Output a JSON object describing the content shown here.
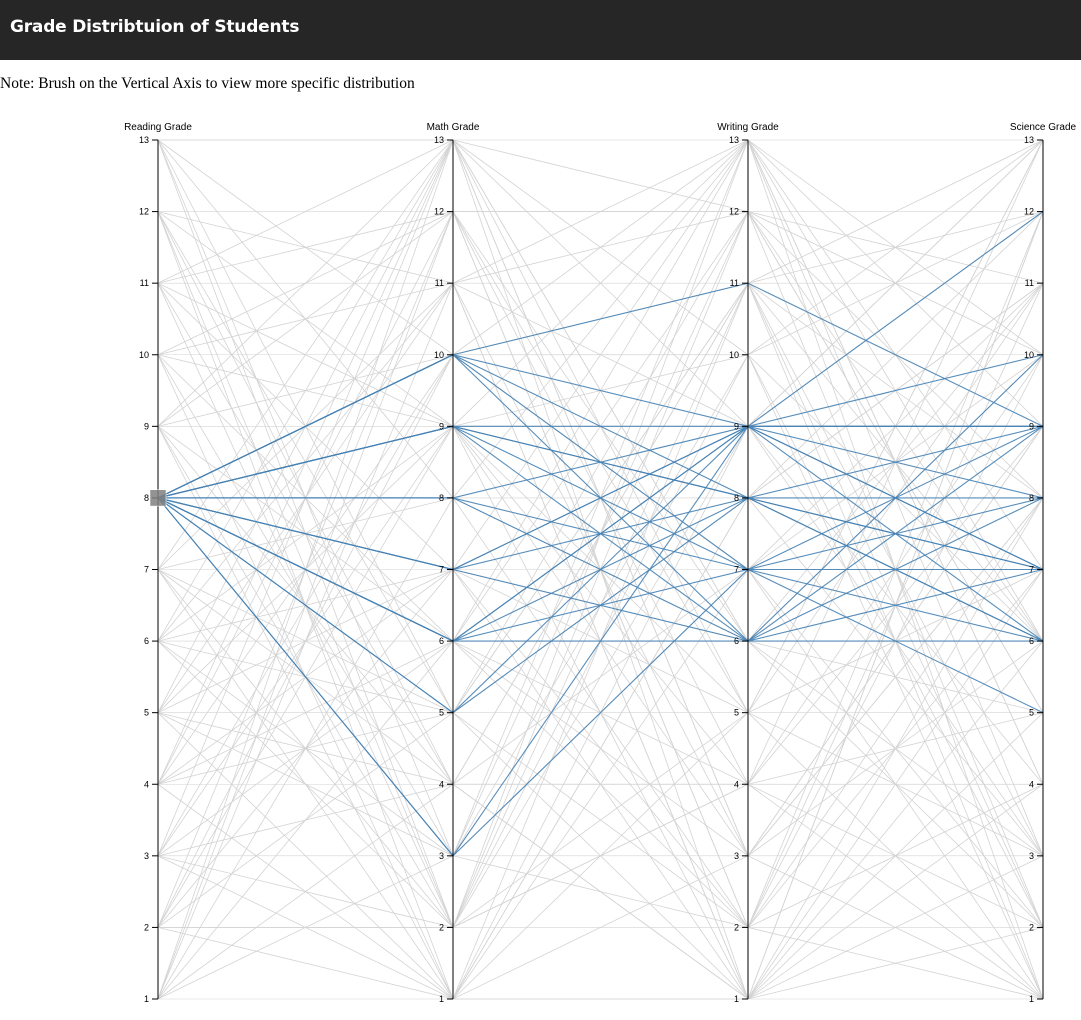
{
  "header": {
    "title": "Grade Distribtuion of Students"
  },
  "note": "Note: Brush on the Vertical Axis to view more specific distribution",
  "colors": {
    "header_bg": "#262626",
    "highlight_line": "#4682b4",
    "background_line": "#d3d3d3",
    "brush": "#808080"
  },
  "chart_data": {
    "type": "parallel-coordinates",
    "axes": [
      "Reading Grade",
      "Math Grade",
      "Writing Grade",
      "Science Grade"
    ],
    "ticks": [
      1,
      2,
      3,
      4,
      5,
      6,
      7,
      8,
      9,
      10,
      11,
      12,
      13
    ],
    "domain": [
      1,
      13
    ],
    "brush": {
      "axis": "Reading Grade",
      "range": [
        7.9,
        8.1
      ]
    },
    "highlighted_records": [
      [
        8,
        10,
        9,
        9
      ],
      [
        8,
        10,
        11,
        9
      ],
      [
        8,
        10,
        8,
        7
      ],
      [
        8,
        10,
        7,
        8
      ],
      [
        8,
        10,
        6,
        6
      ],
      [
        8,
        9,
        9,
        12
      ],
      [
        8,
        9,
        7,
        9
      ],
      [
        8,
        9,
        8,
        7
      ],
      [
        8,
        9,
        6,
        10
      ],
      [
        8,
        9,
        8,
        6
      ],
      [
        8,
        8,
        9,
        9
      ],
      [
        8,
        8,
        7,
        7
      ],
      [
        8,
        8,
        6,
        8
      ],
      [
        8,
        7,
        9,
        8
      ],
      [
        8,
        7,
        8,
        6
      ],
      [
        8,
        7,
        6,
        9
      ],
      [
        8,
        7,
        9,
        7
      ],
      [
        8,
        6,
        9,
        10
      ],
      [
        8,
        6,
        8,
        9
      ],
      [
        8,
        6,
        7,
        5
      ],
      [
        8,
        6,
        6,
        7
      ],
      [
        8,
        6,
        9,
        6
      ],
      [
        8,
        5,
        8,
        8
      ],
      [
        8,
        5,
        9,
        9
      ],
      [
        8,
        3,
        7,
        6
      ],
      [
        8,
        3,
        9,
        7
      ]
    ],
    "background_records": [
      [
        1,
        4,
        7,
        2
      ],
      [
        2,
        9,
        1,
        6
      ],
      [
        3,
        6,
        13,
        4
      ],
      [
        4,
        1,
        5,
        11
      ],
      [
        5,
        11,
        3,
        8
      ],
      [
        6,
        13,
        10,
        1
      ],
      [
        7,
        2,
        4,
        13
      ],
      [
        9,
        12,
        6,
        3
      ],
      [
        10,
        3,
        12,
        5
      ],
      [
        11,
        7,
        2,
        10
      ],
      [
        12,
        5,
        8,
        12
      ],
      [
        13,
        10,
        11,
        2
      ],
      [
        1,
        8,
        13,
        7
      ],
      [
        2,
        12,
        4,
        9
      ],
      [
        3,
        1,
        9,
        13
      ],
      [
        4,
        6,
        2,
        4
      ],
      [
        5,
        3,
        7,
        1
      ],
      [
        6,
        11,
        12,
        11
      ],
      [
        7,
        13,
        1,
        5
      ],
      [
        9,
        2,
        10,
        6
      ],
      [
        10,
        9,
        5,
        13
      ],
      [
        11,
        4,
        11,
        3
      ],
      [
        12,
        1,
        3,
        8
      ],
      [
        13,
        8,
        6,
        10
      ],
      [
        1,
        12,
        2,
        12
      ],
      [
        2,
        5,
        11,
        1
      ],
      [
        3,
        10,
        8,
        3
      ],
      [
        4,
        13,
        3,
        6
      ],
      [
        5,
        7,
        13,
        9
      ],
      [
        6,
        2,
        9,
        12
      ],
      [
        7,
        11,
        1,
        4
      ],
      [
        9,
        6,
        12,
        2
      ],
      [
        10,
        1,
        7,
        10
      ],
      [
        11,
        12,
        5,
        7
      ],
      [
        12,
        9,
        13,
        1
      ],
      [
        13,
        3,
        2,
        11
      ],
      [
        1,
        6,
        4,
        5
      ],
      [
        2,
        2,
        12,
        8
      ],
      [
        3,
        13,
        6,
        11
      ],
      [
        4,
        10,
        10,
        2
      ],
      [
        5,
        1,
        1,
        12
      ],
      [
        6,
        7,
        5,
        3
      ],
      [
        7,
        4,
        11,
        13
      ],
      [
        9,
        13,
        3,
        9
      ],
      [
        10,
        12,
        2,
        1
      ],
      [
        11,
        2,
        13,
        6
      ],
      [
        12,
        11,
        9,
        4
      ],
      [
        13,
        5,
        1,
        7
      ],
      [
        1,
        3,
        10,
        13
      ],
      [
        2,
        7,
        6,
        2
      ],
      [
        3,
        4,
        4,
        10
      ],
      [
        4,
        12,
        12,
        5
      ],
      [
        5,
        9,
        9,
        3
      ],
      [
        6,
        5,
        2,
        8
      ],
      [
        7,
        1,
        8,
        11
      ],
      [
        9,
        4,
        1,
        12
      ],
      [
        10,
        11,
        13,
        4
      ],
      [
        11,
        9,
        4,
        1
      ],
      [
        12,
        2,
        5,
        13
      ],
      [
        13,
        13,
        12,
        6
      ],
      [
        1,
        11,
        1,
        3
      ],
      [
        2,
        1,
        8,
        11
      ],
      [
        3,
        9,
        3,
        1
      ],
      [
        4,
        5,
        11,
        12
      ],
      [
        5,
        13,
        6,
        5
      ],
      [
        6,
        3,
        13,
        10
      ],
      [
        7,
        8,
        2,
        7
      ],
      [
        9,
        10,
        7,
        11
      ],
      [
        10,
        6,
        3,
        9
      ],
      [
        11,
        13,
        9,
        13
      ],
      [
        12,
        4,
        1,
        2
      ],
      [
        13,
        2,
        4,
        4
      ],
      [
        1,
        13,
        5,
        1
      ],
      [
        2,
        10,
        13,
        3
      ],
      [
        3,
        2,
        11,
        6
      ],
      [
        4,
        7,
        1,
        8
      ],
      [
        5,
        4,
        4,
        2
      ],
      [
        6,
        9,
        10,
        12
      ],
      [
        7,
        5,
        12,
        10
      ],
      [
        9,
        1,
        11,
        8
      ]
    ]
  }
}
